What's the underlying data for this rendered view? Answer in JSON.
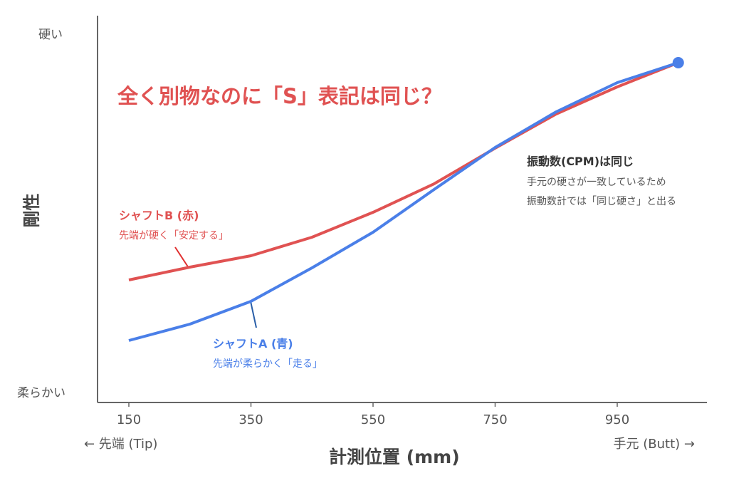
{
  "chart_data": {
    "type": "line",
    "title": "全く別物なのに「S」表記は同じ？",
    "xlabel": "計測位置 (mm)",
    "ylabel": "剛性",
    "x": [
      150,
      250,
      350,
      450,
      550,
      650,
      750,
      850,
      950,
      1050
    ],
    "xticks": [
      150,
      350,
      550,
      750,
      950
    ],
    "xlim": [
      100,
      1100
    ],
    "ylim": [
      0,
      100
    ],
    "ytick_labels": {
      "top": "硬い",
      "bottom": "柔らかい"
    },
    "x_end_labels": {
      "left": "← 先端 (Tip)",
      "right": "手元 (Butt) →"
    },
    "grid": false,
    "series": [
      {
        "name": "シャフトB (赤)",
        "note": "先端が硬く「安定する」",
        "color": "#e05252",
        "values": [
          30.4,
          34,
          37.2,
          42.4,
          49.4,
          57.4,
          67.4,
          77,
          84.6,
          91.4
        ]
      },
      {
        "name": "シャフトA (青)",
        "note": "先端が柔らかく「走る」",
        "color": "#4a7fe8",
        "values": [
          13.4,
          18,
          24.4,
          33.8,
          43.8,
          55.8,
          67.6,
          77.6,
          85.8,
          91.4
        ]
      }
    ],
    "annotation": {
      "title": "振動数(CPM)は同じ",
      "lines": [
        "手元の硬さが一致しているため",
        "振動数計では「同じ硬さ」と出る"
      ]
    }
  }
}
